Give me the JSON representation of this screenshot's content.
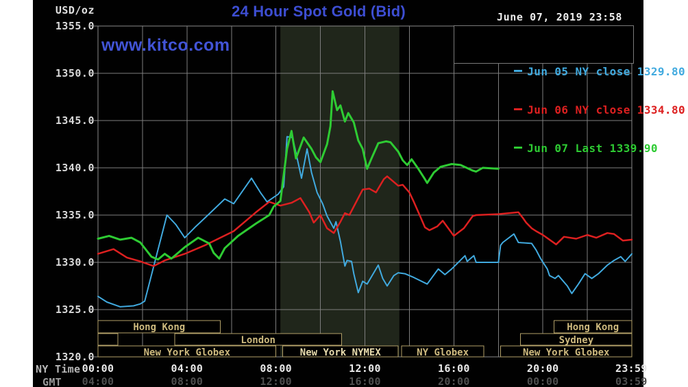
{
  "header": {
    "unit_label": "USD/oz",
    "title": "24 Hour Spot Gold (Bid)",
    "datetime": "June 07, 2019 23:58",
    "watermark": "www.kitco.com"
  },
  "legend": [
    {
      "label": "Jun 05 NY close 1329.80",
      "color": "#41aadf"
    },
    {
      "label": "Jun 06 NY close 1334.80",
      "color": "#dd2020"
    },
    {
      "label": "Jun 07 Last 1339.90",
      "color": "#2ecb33"
    }
  ],
  "axes": {
    "ny_caption": "NY Time",
    "gmt_caption": "GMT"
  },
  "colors": {
    "background": "#010101",
    "grid": "#7e7e7e",
    "frame": "#8a8a8a",
    "highlight_band": "#20261b",
    "session_border": "#b3a169",
    "session_text": "#cdb97e",
    "session_text_bright": "#e8dcae"
  },
  "sessions": [
    {
      "row": 0,
      "start": 0,
      "end": 5.5,
      "label": "Hong Kong",
      "bright": false
    },
    {
      "row": 0,
      "start": 20.5,
      "end": 24,
      "label": "Hong Kong",
      "bright": false
    },
    {
      "row": 1,
      "start": 0,
      "end": 0.9,
      "label": "",
      "bright": false
    },
    {
      "row": 1,
      "start": 3.45,
      "end": 10.95,
      "label": "London",
      "bright": false
    },
    {
      "row": 1,
      "start": 19.0,
      "end": 24,
      "label": "Sydney",
      "bright": false
    },
    {
      "row": 2,
      "start": 0,
      "end": 8.0,
      "label": "New York Globex",
      "bright": false
    },
    {
      "row": 2,
      "start": 8.3,
      "end": 13.5,
      "label": "New York NYMEX",
      "bright": true
    },
    {
      "row": 2,
      "start": 13.65,
      "end": 17.35,
      "label": "NY Globex",
      "bright": false
    },
    {
      "row": 2,
      "start": 18.1,
      "end": 24,
      "label": "New York Globex",
      "bright": false
    }
  ],
  "chart_data": {
    "type": "line",
    "title": "24 Hour Spot Gold (Bid)",
    "ylabel": "USD/oz",
    "xlabel": "NY Time (hours, 00:00-23:59)",
    "ylim": [
      1320,
      1355
    ],
    "xlim_hours": [
      0,
      24
    ],
    "grid": true,
    "legend_position": "top-right",
    "highlight_band_hours": [
      8.2,
      13.55
    ],
    "y_ticks": [
      {
        "v": 1355,
        "label": "1355.0"
      },
      {
        "v": 1350,
        "label": "1350.0"
      },
      {
        "v": 1345,
        "label": "1345.0"
      },
      {
        "v": 1340,
        "label": "1340.0"
      },
      {
        "v": 1335,
        "label": "1335.0"
      },
      {
        "v": 1330,
        "label": "1330.0"
      },
      {
        "v": 1325,
        "label": "1325.0"
      },
      {
        "v": 1320,
        "label": "1320.0"
      }
    ],
    "x_ticks": [
      {
        "h": 0,
        "ny": "00:00",
        "gmt": "04:00"
      },
      {
        "h": 4,
        "ny": "04:00",
        "gmt": "08:00"
      },
      {
        "h": 8,
        "ny": "08:00",
        "gmt": "12:00"
      },
      {
        "h": 12,
        "ny": "12:00",
        "gmt": "16:00"
      },
      {
        "h": 16,
        "ny": "16:00",
        "gmt": "20:00"
      },
      {
        "h": 20,
        "ny": "20:00",
        "gmt": "00:00"
      },
      {
        "h": 23.98,
        "ny": "23:59",
        "gmt": "03:59"
      }
    ],
    "series": [
      {
        "name": "Jun 05 (NY close 1329.80)",
        "color": "#41aadf",
        "width": 2,
        "points": [
          [
            0,
            1326.4
          ],
          [
            0.4,
            1325.8
          ],
          [
            1.0,
            1325.3
          ],
          [
            1.6,
            1325.4
          ],
          [
            1.9,
            1325.6
          ],
          [
            2.1,
            1325.9
          ],
          [
            3.1,
            1335.0
          ],
          [
            3.5,
            1334.0
          ],
          [
            3.9,
            1332.6
          ],
          [
            4.4,
            1333.8
          ],
          [
            4.9,
            1334.9
          ],
          [
            5.7,
            1336.7
          ],
          [
            6.1,
            1336.2
          ],
          [
            6.9,
            1338.9
          ],
          [
            7.3,
            1337.4
          ],
          [
            7.6,
            1336.4
          ],
          [
            8.1,
            1337.2
          ],
          [
            8.35,
            1338.0
          ],
          [
            8.5,
            1343.3
          ],
          [
            8.75,
            1343.2
          ],
          [
            9.15,
            1338.9
          ],
          [
            9.4,
            1342.0
          ],
          [
            9.6,
            1339.5
          ],
          [
            9.85,
            1337.4
          ],
          [
            10.1,
            1336.2
          ],
          [
            10.3,
            1334.9
          ],
          [
            10.6,
            1333.6
          ],
          [
            10.7,
            1334.3
          ],
          [
            10.9,
            1332.2
          ],
          [
            11.1,
            1329.6
          ],
          [
            11.2,
            1330.2
          ],
          [
            11.4,
            1330.1
          ],
          [
            11.5,
            1328.8
          ],
          [
            11.7,
            1326.8
          ],
          [
            11.9,
            1328.0
          ],
          [
            12.1,
            1327.7
          ],
          [
            12.6,
            1329.7
          ],
          [
            12.8,
            1328.3
          ],
          [
            13.0,
            1327.5
          ],
          [
            13.3,
            1328.6
          ],
          [
            13.5,
            1328.9
          ],
          [
            13.8,
            1328.8
          ],
          [
            14.2,
            1328.4
          ],
          [
            14.8,
            1327.7
          ],
          [
            15.3,
            1329.3
          ],
          [
            15.6,
            1328.7
          ],
          [
            15.9,
            1329.3
          ],
          [
            16.5,
            1330.7
          ],
          [
            16.6,
            1330.1
          ],
          [
            16.9,
            1330.7
          ],
          [
            17.0,
            1330.0
          ],
          [
            18.0,
            1330.0
          ],
          [
            18.1,
            1331.8
          ],
          [
            18.2,
            1332.1
          ],
          [
            18.7,
            1333.0
          ],
          [
            18.9,
            1332.1
          ],
          [
            19.5,
            1332.0
          ],
          [
            19.7,
            1331.3
          ],
          [
            19.9,
            1330.4
          ],
          [
            20.2,
            1329.3
          ],
          [
            20.3,
            1328.6
          ],
          [
            20.55,
            1328.3
          ],
          [
            20.7,
            1328.6
          ],
          [
            21.1,
            1327.5
          ],
          [
            21.3,
            1326.7
          ],
          [
            21.6,
            1327.7
          ],
          [
            21.9,
            1328.8
          ],
          [
            22.2,
            1328.3
          ],
          [
            22.5,
            1328.8
          ],
          [
            22.9,
            1329.7
          ],
          [
            23.2,
            1330.2
          ],
          [
            23.5,
            1330.6
          ],
          [
            23.7,
            1330.1
          ],
          [
            24,
            1330.9
          ]
        ]
      },
      {
        "name": "Jun 06 (NY close 1334.80)",
        "color": "#dd2020",
        "width": 2.5,
        "points": [
          [
            0,
            1330.9
          ],
          [
            0.7,
            1331.4
          ],
          [
            1.3,
            1330.5
          ],
          [
            1.9,
            1330.1
          ],
          [
            2.5,
            1329.6
          ],
          [
            3.0,
            1330.2
          ],
          [
            3.9,
            1330.9
          ],
          [
            4.8,
            1331.8
          ],
          [
            6.1,
            1333.3
          ],
          [
            7.1,
            1335.3
          ],
          [
            7.7,
            1336.4
          ],
          [
            8.2,
            1336.0
          ],
          [
            8.7,
            1336.3
          ],
          [
            9.1,
            1336.8
          ],
          [
            9.5,
            1335.3
          ],
          [
            9.7,
            1334.2
          ],
          [
            10.0,
            1335.0
          ],
          [
            10.3,
            1333.6
          ],
          [
            10.6,
            1333.1
          ],
          [
            10.9,
            1334.3
          ],
          [
            11.1,
            1335.2
          ],
          [
            11.3,
            1335.0
          ],
          [
            11.9,
            1337.7
          ],
          [
            12.2,
            1337.8
          ],
          [
            12.5,
            1337.4
          ],
          [
            12.85,
            1338.8
          ],
          [
            13.0,
            1339.1
          ],
          [
            13.5,
            1338.1
          ],
          [
            13.7,
            1338.2
          ],
          [
            14.0,
            1337.4
          ],
          [
            14.2,
            1336.4
          ],
          [
            14.5,
            1334.8
          ],
          [
            14.7,
            1333.7
          ],
          [
            14.9,
            1333.4
          ],
          [
            15.25,
            1333.8
          ],
          [
            15.5,
            1334.4
          ],
          [
            16.0,
            1332.8
          ],
          [
            16.45,
            1333.6
          ],
          [
            16.85,
            1334.9
          ],
          [
            17.0,
            1335.0
          ],
          [
            18.0,
            1335.1
          ],
          [
            18.9,
            1335.3
          ],
          [
            19.1,
            1334.7
          ],
          [
            19.25,
            1334.2
          ],
          [
            19.5,
            1333.6
          ],
          [
            19.7,
            1333.3
          ],
          [
            20.0,
            1332.9
          ],
          [
            20.6,
            1331.9
          ],
          [
            20.95,
            1332.7
          ],
          [
            21.5,
            1332.5
          ],
          [
            22.0,
            1332.9
          ],
          [
            22.4,
            1332.6
          ],
          [
            22.9,
            1333.1
          ],
          [
            23.2,
            1333.0
          ],
          [
            23.6,
            1332.3
          ],
          [
            24,
            1332.4
          ]
        ]
      },
      {
        "name": "Jun 07 (Last 1339.90)",
        "color": "#2ecb33",
        "width": 3,
        "points": [
          [
            0,
            1332.5
          ],
          [
            0.5,
            1332.8
          ],
          [
            1.0,
            1332.4
          ],
          [
            1.5,
            1332.6
          ],
          [
            1.9,
            1332.1
          ],
          [
            2.4,
            1330.6
          ],
          [
            2.7,
            1330.3
          ],
          [
            3.0,
            1330.9
          ],
          [
            3.3,
            1330.4
          ],
          [
            3.9,
            1331.6
          ],
          [
            4.5,
            1332.6
          ],
          [
            5.0,
            1332.0
          ],
          [
            5.2,
            1331.0
          ],
          [
            5.45,
            1330.4
          ],
          [
            5.7,
            1331.5
          ],
          [
            6.3,
            1332.8
          ],
          [
            7.1,
            1334.1
          ],
          [
            7.7,
            1335.0
          ],
          [
            7.9,
            1335.9
          ],
          [
            8.2,
            1336.5
          ],
          [
            8.5,
            1342.0
          ],
          [
            8.7,
            1343.9
          ],
          [
            8.9,
            1341.0
          ],
          [
            9.25,
            1343.2
          ],
          [
            9.6,
            1342.0
          ],
          [
            9.8,
            1341.1
          ],
          [
            10.0,
            1340.6
          ],
          [
            10.3,
            1342.5
          ],
          [
            10.45,
            1344.4
          ],
          [
            10.55,
            1348.1
          ],
          [
            10.75,
            1346.1
          ],
          [
            10.9,
            1346.6
          ],
          [
            11.1,
            1344.9
          ],
          [
            11.25,
            1345.8
          ],
          [
            11.5,
            1344.8
          ],
          [
            11.7,
            1342.9
          ],
          [
            11.9,
            1342.0
          ],
          [
            12.1,
            1339.9
          ],
          [
            12.3,
            1341.0
          ],
          [
            12.6,
            1342.6
          ],
          [
            12.95,
            1342.8
          ],
          [
            13.15,
            1342.7
          ],
          [
            13.5,
            1341.7
          ],
          [
            13.7,
            1340.8
          ],
          [
            13.9,
            1340.3
          ],
          [
            14.1,
            1340.9
          ],
          [
            14.4,
            1339.9
          ],
          [
            14.7,
            1338.8
          ],
          [
            14.8,
            1338.4
          ],
          [
            15.1,
            1339.5
          ],
          [
            15.4,
            1340.1
          ],
          [
            15.9,
            1340.4
          ],
          [
            16.3,
            1340.3
          ],
          [
            16.85,
            1339.7
          ],
          [
            17.0,
            1339.6
          ],
          [
            17.3,
            1340.0
          ],
          [
            18.0,
            1339.9
          ]
        ]
      }
    ]
  }
}
